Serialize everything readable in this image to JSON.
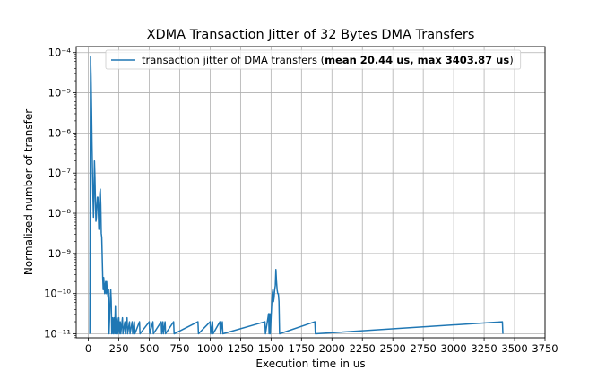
{
  "chart_data": {
    "type": "line",
    "title": "XDMA Transaction Jitter of 32 Bytes DMA Transfers",
    "xlabel": "Execution time in us",
    "ylabel": "Normalized number of transfer",
    "xlim": [
      -100,
      3750
    ],
    "ylim_log10": [
      -11.1,
      -3.85
    ],
    "y_scale": "log",
    "grid": true,
    "legend_position": "top-right",
    "x_ticks": [
      0,
      250,
      500,
      750,
      1000,
      1250,
      1500,
      1750,
      2000,
      2250,
      2500,
      2750,
      3000,
      3250,
      3500,
      3750
    ],
    "x_tick_labels": [
      "0",
      "250",
      "500",
      "750",
      "1000",
      "1250",
      "1500",
      "1750",
      "2000",
      "2250",
      "2500",
      "2750",
      "3000",
      "3250",
      "3500",
      "3750"
    ],
    "y_ticks_log10": [
      -11,
      -10,
      -9,
      -8,
      -7,
      -6,
      -5,
      -4
    ],
    "y_tick_labels": [
      "10⁻¹¹",
      "10⁻¹⁰",
      "10⁻⁹",
      "10⁻⁸",
      "10⁻⁷",
      "10⁻⁶",
      "10⁻⁵",
      "10⁻⁴"
    ],
    "series": [
      {
        "name": "transaction jitter of DMA transfers",
        "legend_prefix": "transaction jitter of DMA transfers (",
        "legend_bold": "mean 20.44 us, max 3403.87 us",
        "legend_suffix": ")",
        "color": "#1f77b4",
        "points": [
          [
            12,
            -11
          ],
          [
            18,
            -4.1
          ],
          [
            22,
            -4.6
          ],
          [
            26,
            -5.4
          ],
          [
            30,
            -6.3
          ],
          [
            34,
            -7.0
          ],
          [
            38,
            -7.6
          ],
          [
            42,
            -8.1
          ],
          [
            46,
            -7.5
          ],
          [
            50,
            -6.7
          ],
          [
            54,
            -7.1
          ],
          [
            58,
            -7.7
          ],
          [
            62,
            -8.2
          ],
          [
            66,
            -8.1
          ],
          [
            70,
            -7.8
          ],
          [
            74,
            -7.6
          ],
          [
            78,
            -7.6
          ],
          [
            82,
            -8.0
          ],
          [
            86,
            -8.4
          ],
          [
            90,
            -7.9
          ],
          [
            94,
            -7.5
          ],
          [
            98,
            -7.4
          ],
          [
            102,
            -7.8
          ],
          [
            106,
            -8.5
          ],
          [
            110,
            -8.6
          ],
          [
            114,
            -9.1
          ],
          [
            118,
            -9.6
          ],
          [
            122,
            -9.9
          ],
          [
            126,
            -9.6
          ],
          [
            130,
            -9.8
          ],
          [
            134,
            -10.0
          ],
          [
            138,
            -9.8
          ],
          [
            142,
            -9.7
          ],
          [
            146,
            -10.0
          ],
          [
            150,
            -9.7
          ],
          [
            154,
            -9.9
          ],
          [
            158,
            -10.0
          ],
          [
            162,
            -10.1
          ],
          [
            166,
            -9.9
          ],
          [
            170,
            -11
          ],
          [
            180,
            -10.1
          ],
          [
            184,
            -9.9
          ],
          [
            188,
            -10.2
          ],
          [
            192,
            -11
          ],
          [
            200,
            -10.6
          ],
          [
            204,
            -11
          ],
          [
            212,
            -10.6
          ],
          [
            216,
            -11
          ],
          [
            222,
            -10.3
          ],
          [
            226,
            -11
          ],
          [
            236,
            -10.6
          ],
          [
            240,
            -11
          ],
          [
            250,
            -10.6
          ],
          [
            254,
            -11
          ],
          [
            262,
            -10.7
          ],
          [
            266,
            -11
          ],
          [
            280,
            -10.6
          ],
          [
            284,
            -11
          ],
          [
            300,
            -10.7
          ],
          [
            304,
            -11
          ],
          [
            318,
            -10.6
          ],
          [
            322,
            -11
          ],
          [
            338,
            -10.7
          ],
          [
            342,
            -11
          ],
          [
            360,
            -10.7
          ],
          [
            364,
            -11
          ],
          [
            378,
            -10.7
          ],
          [
            382,
            -11
          ],
          [
            420,
            -10.7
          ],
          [
            424,
            -11
          ],
          [
            500,
            -10.7
          ],
          [
            504,
            -11
          ],
          [
            530,
            -10.7
          ],
          [
            534,
            -11
          ],
          [
            598,
            -10.7
          ],
          [
            602,
            -11
          ],
          [
            612,
            -10.7
          ],
          [
            616,
            -11
          ],
          [
            630,
            -10.7
          ],
          [
            634,
            -11
          ],
          [
            700,
            -10.7
          ],
          [
            704,
            -11
          ],
          [
            900,
            -10.7
          ],
          [
            904,
            -11
          ],
          [
            1000,
            -10.7
          ],
          [
            1004,
            -11
          ],
          [
            1020,
            -10.7
          ],
          [
            1024,
            -11
          ],
          [
            1080,
            -10.7
          ],
          [
            1084,
            -11
          ],
          [
            1100,
            -10.7
          ],
          [
            1104,
            -11
          ],
          [
            1450,
            -10.7
          ],
          [
            1454,
            -11
          ],
          [
            1480,
            -10.5
          ],
          [
            1484,
            -11
          ],
          [
            1490,
            -10.5
          ],
          [
            1494,
            -11
          ],
          [
            1500,
            -10.6
          ],
          [
            1505,
            -10.3
          ],
          [
            1510,
            -10.0
          ],
          [
            1515,
            -9.9
          ],
          [
            1520,
            -10.2
          ],
          [
            1525,
            -10.1
          ],
          [
            1530,
            -9.9
          ],
          [
            1535,
            -9.8
          ],
          [
            1540,
            -9.4
          ],
          [
            1545,
            -9.7
          ],
          [
            1550,
            -9.9
          ],
          [
            1555,
            -10.0
          ],
          [
            1560,
            -10.0
          ],
          [
            1565,
            -10.2
          ],
          [
            1570,
            -11
          ],
          [
            1860,
            -10.7
          ],
          [
            1864,
            -11
          ],
          [
            3400,
            -10.7
          ],
          [
            3404,
            -11
          ]
        ]
      }
    ]
  }
}
